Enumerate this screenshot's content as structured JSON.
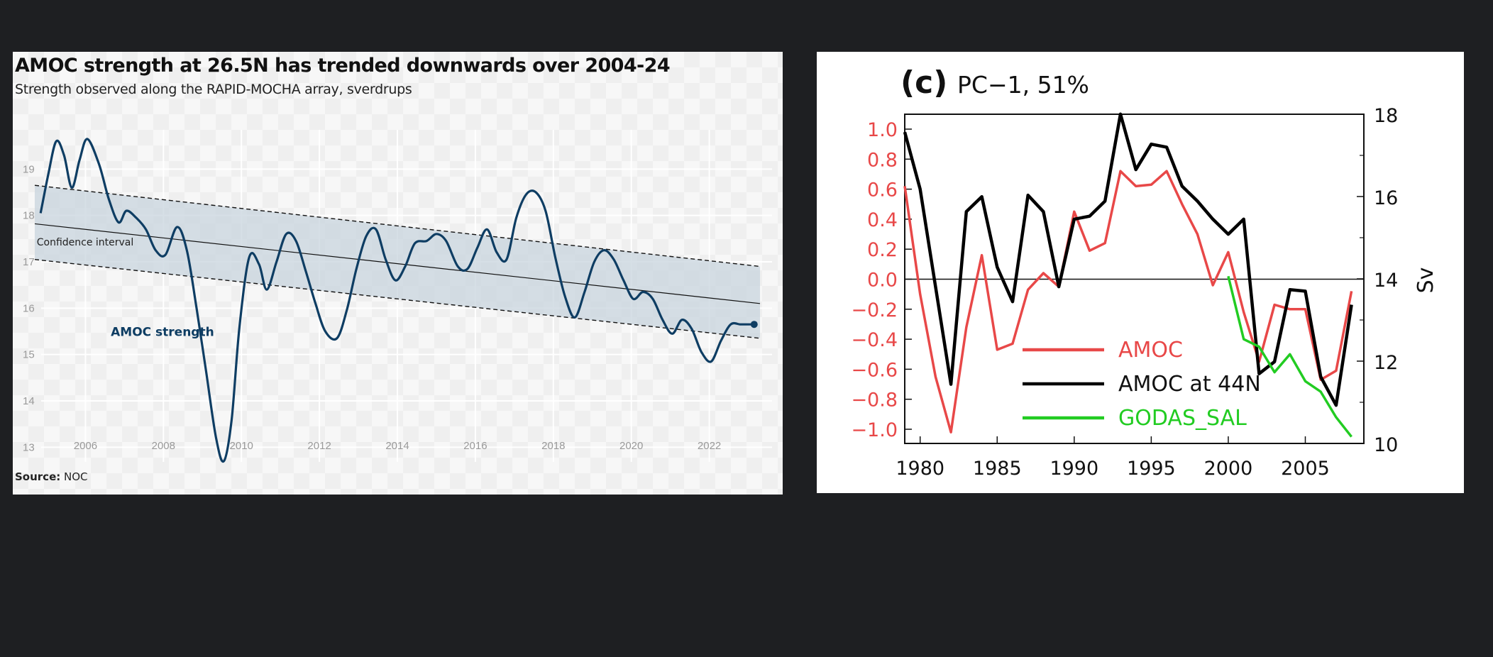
{
  "chart_data": [
    {
      "type": "line",
      "title": "AMOC strength at 26.5N has trended downwards over 2004-24",
      "subtitle": "Strength observed along the RAPID-MOCHA array, sverdrups",
      "source_label": "Source:",
      "source_value": "NOC",
      "xlim": [
        2004.5,
        2023.7
      ],
      "ylim": [
        12.5,
        20.0
      ],
      "x_ticks": [
        2006,
        2008,
        2010,
        2012,
        2014,
        2016,
        2018,
        2020,
        2022
      ],
      "y_ticks": [
        13,
        14,
        15,
        16,
        17,
        18,
        19
      ],
      "grid": true,
      "annotations": [
        {
          "text": "Confidence interval",
          "x": 2004.75,
          "y": 17.35
        },
        {
          "text": "AMOC strength",
          "x": 2006.65,
          "y": 15.4
        }
      ],
      "band": {
        "x": [
          2004.7,
          2023.3
        ],
        "upper": [
          18.65,
          16.9
        ],
        "lower": [
          17.05,
          15.35
        ]
      },
      "trend": {
        "x": [
          2004.7,
          2023.3
        ],
        "y": [
          17.82,
          16.1
        ]
      },
      "series": [
        {
          "name": "AMOC strength",
          "color": "#0e3d63",
          "x": [
            2004.85,
            2005.05,
            2005.25,
            2005.45,
            2005.65,
            2005.85,
            2006.05,
            2006.35,
            2006.6,
            2006.85,
            2007.05,
            2007.3,
            2007.55,
            2007.8,
            2008.05,
            2008.35,
            2008.6,
            2008.85,
            2009.1,
            2009.35,
            2009.55,
            2009.75,
            2009.95,
            2010.2,
            2010.45,
            2010.65,
            2010.9,
            2011.15,
            2011.4,
            2011.65,
            2011.9,
            2012.15,
            2012.45,
            2012.7,
            2012.95,
            2013.2,
            2013.45,
            2013.7,
            2013.95,
            2014.2,
            2014.45,
            2014.75,
            2015.0,
            2015.25,
            2015.55,
            2015.8,
            2016.05,
            2016.3,
            2016.55,
            2016.8,
            2017.05,
            2017.3,
            2017.55,
            2017.8,
            2018.05,
            2018.3,
            2018.55,
            2018.8,
            2019.05,
            2019.3,
            2019.55,
            2019.8,
            2020.05,
            2020.3,
            2020.55,
            2020.8,
            2021.05,
            2021.3,
            2021.55,
            2021.8,
            2022.05,
            2022.3,
            2022.55,
            2022.8,
            2023.05,
            2023.15
          ],
          "y": [
            18.05,
            18.9,
            19.6,
            19.3,
            18.6,
            19.2,
            19.65,
            19.1,
            18.35,
            17.85,
            18.1,
            17.95,
            17.7,
            17.25,
            17.15,
            17.75,
            17.25,
            16.0,
            14.6,
            13.2,
            12.7,
            13.6,
            15.6,
            17.1,
            16.95,
            16.4,
            17.0,
            17.6,
            17.45,
            16.8,
            16.1,
            15.5,
            15.35,
            15.95,
            16.85,
            17.55,
            17.7,
            17.05,
            16.6,
            16.9,
            17.4,
            17.45,
            17.6,
            17.45,
            16.9,
            16.85,
            17.3,
            17.7,
            17.2,
            17.05,
            17.95,
            18.45,
            18.5,
            18.1,
            17.1,
            16.25,
            15.8,
            16.35,
            17.0,
            17.25,
            17.05,
            16.6,
            16.2,
            16.35,
            16.2,
            15.75,
            15.45,
            15.75,
            15.55,
            15.05,
            14.85,
            15.3,
            15.65,
            15.65,
            15.65,
            15.65
          ]
        }
      ]
    },
    {
      "type": "line",
      "title": "PC−1, 51%",
      "panel_label": "(c)",
      "xlim": [
        1979,
        2008.8
      ],
      "ylim": [
        -1.0,
        1.0
      ],
      "y2lim": [
        10,
        18
      ],
      "y2label": "Sv",
      "x_ticks": [
        1980,
        1985,
        1990,
        1995,
        2000,
        2005
      ],
      "y_ticks": [
        "1.0",
        "0.8",
        "0.6",
        "0.4",
        "0.2",
        "0.0",
        "−0.2",
        "−0.4",
        "−0.6",
        "−0.8",
        "−1.0"
      ],
      "y2_ticks": [
        18,
        16,
        14,
        12,
        10
      ],
      "grid": false,
      "legend_position": "lower-left",
      "series": [
        {
          "name": "AMOC",
          "color": "#e84848",
          "x": [
            1979,
            1980,
            1981,
            1982,
            1983,
            1984,
            1985,
            1986,
            1987,
            1988,
            1989,
            1990,
            1991,
            1992,
            1993,
            1994,
            1995,
            1996,
            1997,
            1998,
            1999,
            2000,
            2001,
            2002,
            2003,
            2004,
            2005,
            2006,
            2007,
            2008
          ],
          "y": [
            0.62,
            -0.1,
            -0.65,
            -1.02,
            -0.32,
            0.16,
            -0.47,
            -0.43,
            -0.07,
            0.04,
            -0.05,
            0.45,
            0.19,
            0.24,
            0.72,
            0.62,
            0.63,
            0.72,
            0.5,
            0.3,
            -0.04,
            0.18,
            -0.22,
            -0.55,
            -0.17,
            -0.2,
            -0.2,
            -0.67,
            -0.61,
            -0.08
          ]
        },
        {
          "name": "AMOC at 44N",
          "color": "#000000",
          "x": [
            1979,
            1980,
            1981,
            1982,
            1983,
            1984,
            1985,
            1986,
            1987,
            1988,
            1989,
            1990,
            1991,
            1992,
            1993,
            1994,
            1995,
            1996,
            1997,
            1998,
            1999,
            2000,
            2001,
            2002,
            2003,
            2004,
            2005,
            2006,
            2007,
            2008
          ],
          "y": [
            0.98,
            0.6,
            -0.05,
            -0.7,
            0.45,
            0.55,
            0.08,
            -0.15,
            0.56,
            0.45,
            -0.05,
            0.4,
            0.42,
            0.52,
            1.1,
            0.73,
            0.9,
            0.88,
            0.62,
            0.52,
            0.4,
            0.3,
            0.4,
            -0.63,
            -0.55,
            -0.07,
            -0.08,
            -0.65,
            -0.84,
            -0.17
          ]
        },
        {
          "name": "GODAS_SAL",
          "color": "#22cc22",
          "x": [
            2000,
            2001,
            2002,
            2003,
            2004,
            2005,
            2006,
            2007,
            2008
          ],
          "y": [
            0.02,
            -0.4,
            -0.45,
            -0.62,
            -0.5,
            -0.68,
            -0.75,
            -0.92,
            -1.05
          ]
        }
      ]
    }
  ]
}
